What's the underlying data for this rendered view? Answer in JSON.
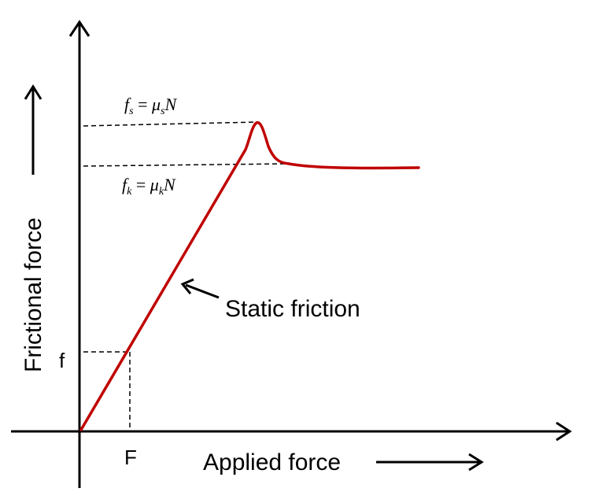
{
  "diagram": {
    "x_axis_label": "Applied force",
    "y_axis_label": "Frictional force",
    "static_friction_label": "Static friction",
    "f_tick_label": "f",
    "F_tick_label": "F",
    "fs_equation": {
      "symbol": "f",
      "subscript": "s",
      "equals": " = ",
      "coef": "μ",
      "coef_sub": "s",
      "force": "N"
    },
    "fk_equation": {
      "symbol": "f",
      "subscript": "k",
      "equals": " = ",
      "coef": "μ",
      "coef_sub": "k",
      "force": "N"
    },
    "colors": {
      "curve": "#c00000",
      "axes": "#000000"
    }
  }
}
